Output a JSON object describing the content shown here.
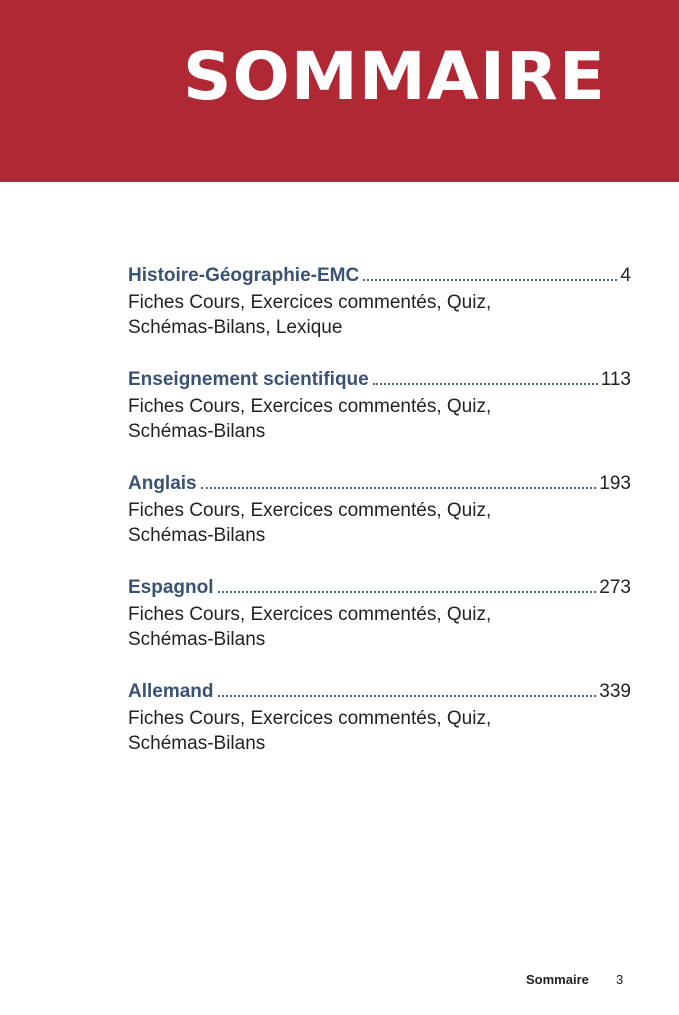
{
  "header": {
    "title": "SOMMAIRE",
    "color": "#b02833"
  },
  "entries": [
    {
      "title": "Histoire-Géographie-EMC",
      "page": "4",
      "lines": [
        "Fiches Cours, Exercices commentés, Quiz,",
        "Schémas-Bilans, Lexique"
      ]
    },
    {
      "title": "Enseignement scientifique",
      "page": "113",
      "lines": [
        "Fiches Cours, Exercices commentés, Quiz,",
        "Schémas-Bilans"
      ]
    },
    {
      "title": "Anglais",
      "page": "193",
      "lines": [
        "Fiches Cours, Exercices commentés, Quiz,",
        "Schémas-Bilans"
      ]
    },
    {
      "title": "Espagnol",
      "page": "273",
      "lines": [
        "Fiches Cours, Exercices commentés, Quiz,",
        "Schémas-Bilans"
      ]
    },
    {
      "title": "Allemand",
      "page": "339",
      "lines": [
        "Fiches Cours, Exercices commentés, Quiz,",
        "Schémas-Bilans"
      ]
    }
  ],
  "footer": {
    "label": "Sommaire",
    "page": "3"
  }
}
